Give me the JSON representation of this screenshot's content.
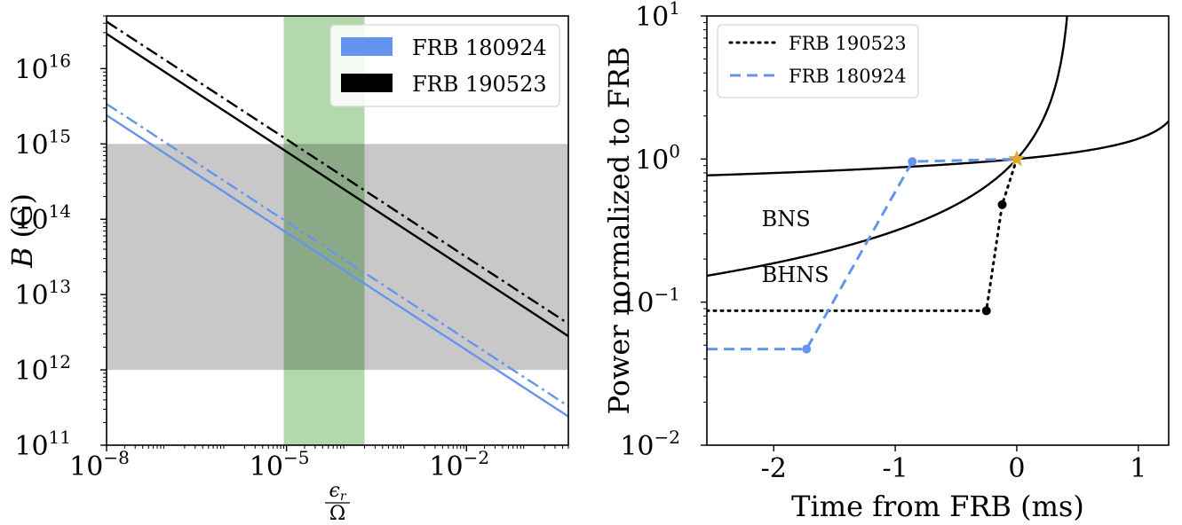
{
  "chart_data": [
    {
      "type": "line",
      "xlabel_numerator": "ϵ",
      "xlabel_numerator_sub": "r",
      "xlabel_denominator": "Ω",
      "ylabel_var": "B",
      "ylabel_unit": "(G)",
      "x_scale": "log",
      "y_scale": "log",
      "xlim": [
        1e-08,
        0.5
      ],
      "ylim": [
        100000000000.0,
        5e+16
      ],
      "x_ticks": [
        {
          "value": 1e-08,
          "base": "10",
          "exp": "−8"
        },
        {
          "value": 1e-05,
          "base": "10",
          "exp": "−5"
        },
        {
          "value": 0.01,
          "base": "10",
          "exp": "−2"
        }
      ],
      "y_ticks": [
        {
          "value": 100000000000.0,
          "base": "10",
          "exp": "11"
        },
        {
          "value": 1000000000000.0,
          "base": "10",
          "exp": "12"
        },
        {
          "value": 10000000000000.0,
          "base": "10",
          "exp": "13"
        },
        {
          "value": 100000000000000.0,
          "base": "10",
          "exp": "14"
        },
        {
          "value": 1000000000000000.0,
          "base": "10",
          "exp": "15"
        },
        {
          "value": 1e+16,
          "base": "10",
          "exp": "16"
        }
      ],
      "shaded_regions": [
        {
          "orientation": "horizontal",
          "from": 1000000000000.0,
          "to": 1000000000000000.0,
          "color": "#c8c8c8"
        },
        {
          "orientation": "vertical",
          "from": 9e-06,
          "to": 0.0002,
          "color": "#94c98c"
        }
      ],
      "series": [
        {
          "name": "FRB 180924",
          "color": "#6495ed",
          "style": "solid",
          "x": [
            1e-08,
            0.5
          ],
          "y": [
            2400000000000000.0,
            240000000000.0
          ]
        },
        {
          "name": "FRB 180924",
          "color": "#6495ed",
          "style": "dashdot",
          "x": [
            1e-08,
            0.5
          ],
          "y": [
            3400000000000000.0,
            330000000000.0
          ]
        },
        {
          "name": "FRB 190523",
          "color": "#000000",
          "style": "solid",
          "x": [
            1e-08,
            0.5
          ],
          "y": [
            2.9e+16,
            2800000000000.0
          ]
        },
        {
          "name": "FRB 190523",
          "color": "#000000",
          "style": "dashdot",
          "x": [
            1e-08,
            0.5
          ],
          "y": [
            4.2e+16,
            4100000000000.0
          ]
        }
      ],
      "legend": {
        "placement": "top-right",
        "entries": [
          {
            "label": "FRB 180924",
            "color": "#6495ed"
          },
          {
            "label": "FRB 190523",
            "color": "#000000"
          }
        ]
      }
    },
    {
      "type": "line",
      "xlabel": "Time from FRB (ms)",
      "ylabel": "Power normalized to FRB",
      "y_scale": "log",
      "xlim": [
        -2.55,
        1.25
      ],
      "ylim": [
        0.01,
        10
      ],
      "x_ticks": [
        {
          "value": -2,
          "label": "-2"
        },
        {
          "value": -1,
          "label": "-1"
        },
        {
          "value": 0,
          "label": "0"
        },
        {
          "value": 1,
          "label": "1"
        }
      ],
      "y_ticks": [
        {
          "value": 0.01,
          "base": "10",
          "exp": "−2"
        },
        {
          "value": 0.1,
          "base": "10",
          "exp": "−1"
        },
        {
          "value": 1,
          "base": "10",
          "exp": "0"
        },
        {
          "value": 10,
          "base": "10",
          "exp": "1"
        }
      ],
      "series": [
        {
          "name": "FRB 190523",
          "color": "#000000",
          "style": "dotted",
          "markers": true,
          "x": [
            -2.55,
            -0.25,
            -0.12,
            0.0
          ],
          "y": [
            0.087,
            0.087,
            0.48,
            1.0
          ]
        },
        {
          "name": "FRB 180924",
          "color": "#6495ed",
          "style": "dashed",
          "markers": true,
          "x": [
            -2.55,
            -1.73,
            -0.86,
            0.0
          ],
          "y": [
            0.047,
            0.047,
            0.96,
            1.0
          ]
        }
      ],
      "model_curves": [
        {
          "label": "BNS",
          "power_law_index": -0.25,
          "t0": 1.37
        },
        {
          "label": "BHNS",
          "power_law_index": -1.0,
          "t0": 0.46
        }
      ],
      "annotations": [
        {
          "text": "BNS",
          "x": -2.1,
          "y": 0.34
        },
        {
          "text": "BHNS",
          "x": -2.1,
          "y": 0.138
        }
      ],
      "marker": {
        "shape": "star",
        "x": 0,
        "y": 1,
        "color": "#e0a82e"
      },
      "legend": {
        "placement": "top-left",
        "entries": [
          {
            "label": "FRB 190523",
            "color": "#000000",
            "style": "dotted"
          },
          {
            "label": "FRB 180924",
            "color": "#6495ed",
            "style": "dashed"
          }
        ]
      }
    }
  ]
}
